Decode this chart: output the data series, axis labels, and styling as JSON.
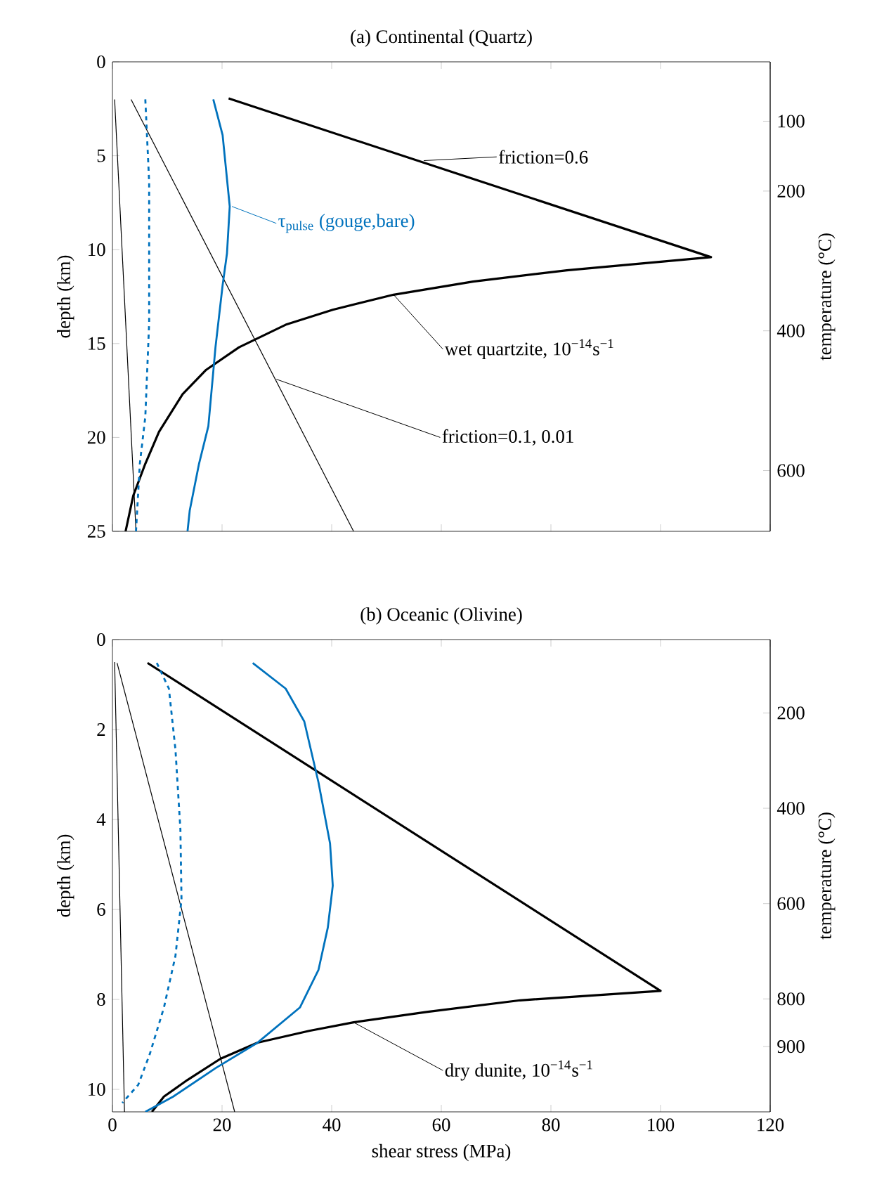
{
  "chart_data": [
    {
      "type": "line",
      "title": "(a) Continental (Quartz)",
      "ylabel": "depth (km)",
      "y2label": "temperature (°C)",
      "xlim": [
        0,
        120
      ],
      "xticks": [
        0,
        20,
        40,
        60,
        80,
        100,
        120
      ],
      "ylim": [
        25,
        0
      ],
      "yticks": [
        0,
        5,
        10,
        15,
        20,
        25
      ],
      "tick_labels": "y",
      "y2lim": [
        687,
        15
      ],
      "y2ticks": [
        100,
        200,
        400,
        600
      ],
      "series": [
        {
          "color": "#000000",
          "x": [
            21.2,
            109.2,
            82.9,
            65.8,
            51.3,
            40.2,
            31.6,
            23.1,
            17.1,
            12.8,
            8.5,
            6.0,
            3.8,
            2.4
          ],
          "values": [
            1.95,
            10.4,
            11.1,
            11.7,
            12.4,
            13.2,
            14.0,
            15.2,
            16.4,
            17.7,
            19.7,
            21.4,
            23.1,
            25.0
          ]
        },
        {
          "color": "#000000",
          "x": [
            3.4,
            44.0
          ],
          "values": [
            2.0,
            25.0
          ]
        },
        {
          "color": "#000000",
          "x": [
            0.4,
            4.3
          ],
          "values": [
            2.0,
            25.0
          ]
        },
        {
          "color": "#0072bd",
          "x": [
            18.4,
            20.1,
            21.4,
            20.9,
            20.1,
            18.8,
            17.5,
            15.8,
            14.1,
            13.7
          ],
          "values": [
            2.0,
            3.9,
            7.7,
            10.2,
            11.9,
            15.2,
            19.4,
            21.4,
            23.9,
            25.0
          ]
        },
        {
          "color": "#0072bd",
          "line_style": "dashed",
          "x": [
            6.0,
            6.7,
            6.7,
            6.0,
            5.0,
            4.3
          ],
          "values": [
            2.0,
            6.4,
            13.9,
            18.9,
            21.4,
            25.0
          ]
        }
      ],
      "annotations": [
        "friction=0.6",
        {
          "text": "τ$_{pulse}$ (gouge,bare)",
          "x": 21.8,
          "y": 7.7
        },
        {
          "text": "wet quartzite, 10$^{−14}$s$^{−1}$",
          "x": 51.3,
          "y": 12.4
        },
        {
          "text": "friction=0.1, 0.01",
          "x": 29.9,
          "y": 16.9
        }
      ]
    },
    {
      "type": "line",
      "title": "(b) Oceanic (Olivine)",
      "xlabel": "shear stress (MPa)",
      "ylabel": "depth (km)",
      "y2label": "temperature (°C)",
      "xlim": [
        0,
        120
      ],
      "xticks": [
        0,
        20,
        40,
        60,
        80,
        100,
        120
      ],
      "ylim": [
        10.5,
        0
      ],
      "yticks": [
        0,
        2,
        4,
        6,
        8,
        10
      ],
      "y2lim": [
        1037,
        46
      ],
      "y2ticks": [
        200,
        400,
        600,
        800,
        900
      ],
      "series": [
        {
          "color": "#000000",
          "x": [
            6.4,
            100,
            74.4,
            57.3,
            44.0,
            35.9,
            26.5,
            19.7,
            13.7,
            9.4,
            7.2
          ],
          "values": [
            0.52,
            7.81,
            8.02,
            8.28,
            8.51,
            8.7,
            8.96,
            9.32,
            9.79,
            10.16,
            10.5
          ]
        },
        {
          "color": "#000000",
          "x": [
            0.85,
            22.3
          ],
          "values": [
            0.52,
            10.5
          ]
        },
        {
          "color": "#000000",
          "x": [
            0.4,
            2.2
          ],
          "values": [
            0.5,
            10.5
          ]
        },
        {
          "color": "#0072bd",
          "x": [
            25.6,
            31.6,
            35.0,
            37.6,
            39.7,
            40.2,
            39.3,
            37.6,
            34.2,
            26.5,
            18.8,
            11.1,
            6.0
          ],
          "values": [
            0.52,
            1.09,
            1.82,
            3.18,
            4.53,
            5.47,
            6.4,
            7.34,
            8.18,
            8.96,
            9.53,
            10.16,
            10.5
          ]
        },
        {
          "color": "#0072bd",
          "line_style": "dashed",
          "x": [
            8.1,
            10.3,
            11.5,
            12.4,
            12.6,
            11.5,
            9.4,
            6.8,
            4.7,
            1.8
          ],
          "values": [
            0.52,
            1.09,
            2.45,
            4.22,
            5.78,
            7.03,
            8.18,
            9.22,
            9.9,
            10.3
          ]
        }
      ],
      "annotations": [
        {
          "text": "dry dunite, 10$^{−14}$s$^{−1}$",
          "x": 44.0,
          "y": 8.51
        }
      ]
    }
  ]
}
